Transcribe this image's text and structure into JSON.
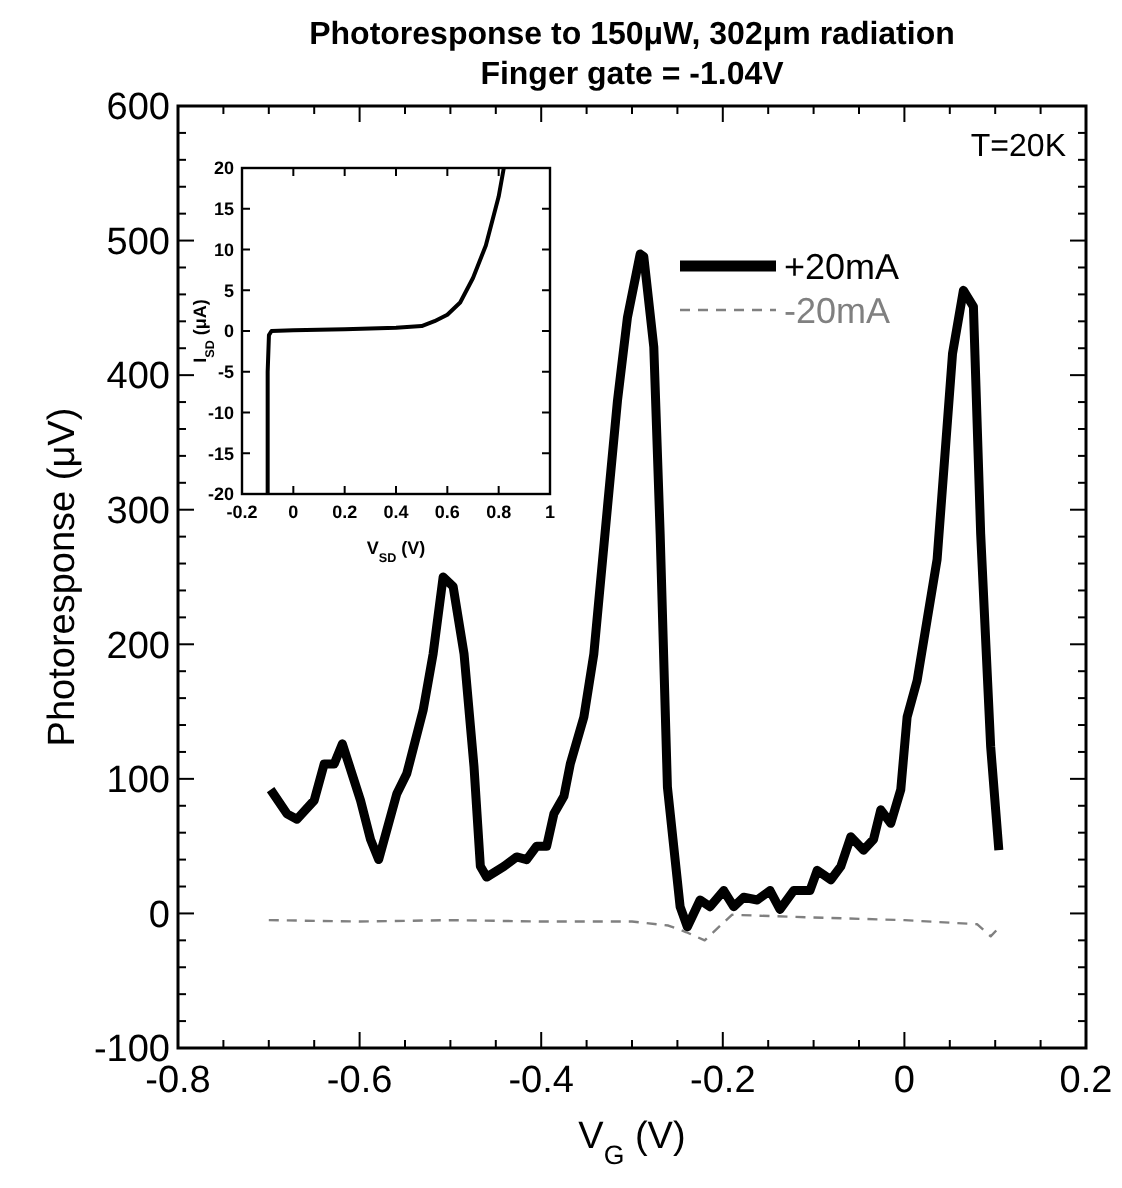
{
  "chart_data": [
    {
      "type": "line",
      "title": "Photoresponse to 150μW, 302μm radiation",
      "subtitle": "Finger gate = -1.04V",
      "xlabel": "V$_{G}$ (V)",
      "ylabel": "Photoresponse (μV)",
      "xlim": [
        -0.8,
        0.2
      ],
      "ylim": [
        -100,
        600
      ],
      "xticks": [
        -0.8,
        {
          "value": -0.75,
          "label": null
        },
        {
          "value": -0.7,
          "label": null
        },
        {
          "value": -0.65,
          "label": null
        },
        -0.6,
        {
          "value": -0.55,
          "label": null
        },
        {
          "value": -0.5,
          "label": null
        },
        {
          "value": -0.45,
          "label": null
        },
        -0.4,
        {
          "value": -0.35,
          "label": null
        },
        {
          "value": -0.3,
          "label": null
        },
        {
          "value": -0.25,
          "label": null
        },
        -0.2,
        {
          "value": -0.15,
          "label": null
        },
        {
          "value": -0.1,
          "label": null
        },
        {
          "value": -0.05,
          "label": null
        },
        0,
        {
          "value": 0.05,
          "label": null
        },
        {
          "value": 0.1,
          "label": null
        },
        {
          "value": 0.15,
          "label": null
        },
        0.2
      ],
      "yticks": [
        -100,
        {
          "value": -80,
          "label": null
        },
        {
          "value": -60,
          "label": null
        },
        {
          "value": -40,
          "label": null
        },
        {
          "value": -20,
          "label": null
        },
        0,
        {
          "value": 20,
          "label": null
        },
        {
          "value": 40,
          "label": null
        },
        {
          "value": 60,
          "label": null
        },
        {
          "value": 80,
          "label": null
        },
        100,
        {
          "value": 120,
          "label": null
        },
        {
          "value": 140,
          "label": null
        },
        {
          "value": 160,
          "label": null
        },
        {
          "value": 180,
          "label": null
        },
        200,
        {
          "value": 220,
          "label": null
        },
        {
          "value": 240,
          "label": null
        },
        {
          "value": 260,
          "label": null
        },
        {
          "value": 280,
          "label": null
        },
        300,
        {
          "value": 320,
          "label": null
        },
        {
          "value": 340,
          "label": null
        },
        {
          "value": 360,
          "label": null
        },
        {
          "value": 380,
          "label": null
        },
        400,
        {
          "value": 420,
          "label": null
        },
        {
          "value": 440,
          "label": null
        },
        {
          "value": 460,
          "label": null
        },
        {
          "value": 480,
          "label": null
        },
        500,
        {
          "value": 520,
          "label": null
        },
        {
          "value": 540,
          "label": null
        },
        {
          "value": 560,
          "label": null
        },
        {
          "value": 580,
          "label": null
        },
        600
      ],
      "legend": "top right",
      "grid": false,
      "annotations": [
        "T=20K"
      ],
      "series": [
        {
          "name": "+20mA",
          "color": "#000000",
          "line_style": "solid",
          "x": [
            -0.698,
            -0.68,
            -0.669,
            -0.65,
            -0.639,
            -0.628,
            -0.619,
            -0.599,
            -0.588,
            -0.579,
            -0.559,
            -0.548,
            -0.53,
            -0.519,
            -0.508,
            -0.497,
            -0.485,
            -0.474,
            -0.467,
            -0.46,
            -0.441,
            -0.427,
            -0.416,
            -0.405,
            -0.394,
            -0.386,
            -0.375,
            -0.368,
            -0.353,
            -0.342,
            -0.327,
            -0.316,
            -0.305,
            -0.291,
            -0.287,
            -0.276,
            -0.269,
            -0.261,
            -0.247,
            -0.239,
            -0.225,
            -0.214,
            -0.199,
            -0.188,
            -0.177,
            -0.162,
            -0.148,
            -0.137,
            -0.122,
            -0.104,
            -0.096,
            -0.081,
            -0.07,
            -0.059,
            -0.045,
            -0.034,
            -0.026,
            -0.015,
            -0.004,
            0.003,
            0.014,
            0.025,
            0.036,
            0.053,
            0.065,
            0.076,
            0.084,
            0.095,
            0.104
          ],
          "values": [
            92,
            74,
            70,
            84,
            111,
            111,
            126,
            84,
            55,
            40,
            89,
            104,
            151,
            193,
            250,
            243,
            193,
            109,
            35,
            27,
            35,
            42,
            40,
            50,
            50,
            74,
            87,
            111,
            146,
            193,
            302,
            381,
            443,
            490,
            488,
            421,
            282,
            94,
            5,
            -10,
            10,
            5,
            17,
            5,
            12,
            10,
            17,
            3,
            17,
            17,
            32,
            25,
            35,
            57,
            47,
            55,
            77,
            67,
            92,
            146,
            173,
            218,
            263,
            416,
            463,
            451,
            282,
            124,
            47
          ]
        },
        {
          "name": "-20mA",
          "color": "#808080",
          "line_style": "dashed",
          "x": [
            -0.7,
            -0.6,
            -0.5,
            -0.4,
            -0.3,
            -0.26,
            -0.24,
            -0.22,
            -0.19,
            -0.1,
            0,
            0.08,
            0.095,
            0.105
          ],
          "values": [
            -5,
            -6,
            -5,
            -6,
            -6,
            -9,
            -14,
            -20,
            -1,
            -3,
            -5,
            -8,
            -17,
            -10
          ]
        }
      ]
    },
    {
      "type": "line",
      "xlabel": "V$_{SD}$ (V)",
      "ylabel": "I$_{SD}$ (μA)",
      "xlim": [
        -0.2,
        1
      ],
      "ylim": [
        -20,
        20
      ],
      "xticks": [
        -0.2,
        0,
        0.2,
        0.4,
        0.6,
        0.8,
        1
      ],
      "yticks": [
        -20,
        -15,
        -10,
        -5,
        0,
        5,
        10,
        15,
        20
      ],
      "grid": false,
      "legend": false,
      "series": [
        {
          "color": "#000000",
          "line_style": "solid",
          "x": [
            -0.1,
            -0.1,
            -0.095,
            -0.085,
            0,
            0.2,
            0.4,
            0.5,
            0.55,
            0.6,
            0.65,
            0.7,
            0.75,
            0.8,
            0.82
          ],
          "values": [
            -20,
            -5,
            -0.5,
            0,
            0.1,
            0.2,
            0.4,
            0.6,
            1.2,
            2,
            3.5,
            6.5,
            10.5,
            16.5,
            20
          ]
        }
      ]
    }
  ]
}
